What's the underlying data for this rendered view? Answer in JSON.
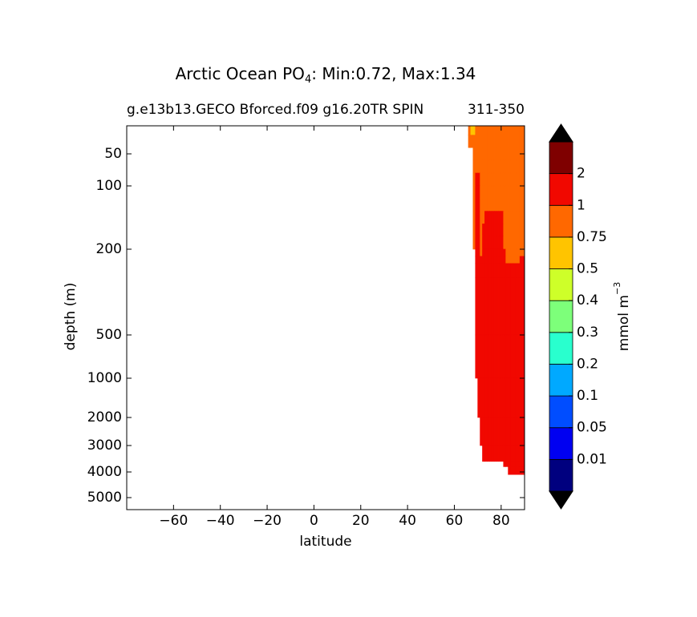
{
  "chart_data": {
    "type": "contourf",
    "title": [
      "Arctic Ocean PO",
      "4",
      ": Min:0.72, Max:1.34"
    ],
    "subtitle": "g.e13b13.GECO Bforced.f09 g16.20TR SPIN",
    "subtitle_right": "311-350",
    "x_label": "latitude",
    "y_label": "depth (m)",
    "xlim": [
      -80,
      90
    ],
    "xticks": [
      {
        "value": -60,
        "label": "−60"
      },
      {
        "value": -40,
        "label": "−40"
      },
      {
        "value": -20,
        "label": "−20"
      },
      0,
      20,
      40,
      60,
      80
    ],
    "ylim": [
      5500,
      5
    ],
    "yticks": [
      50,
      100,
      200,
      500,
      1000,
      2000,
      3000,
      4000,
      5000
    ],
    "lat_edges": [
      66,
      67,
      68,
      69,
      70,
      71,
      72,
      73,
      74,
      75,
      76,
      77,
      78,
      79,
      80,
      81,
      82,
      83,
      84,
      85,
      86,
      87,
      88,
      89,
      90
    ],
    "depth_edges": [
      5,
      20,
      40,
      60,
      80,
      100,
      120,
      140,
      160,
      180,
      200,
      225,
      250,
      300,
      500,
      1000,
      2000,
      3000,
      3600,
      3800,
      4100
    ],
    "z": [
      [
        0.85,
        0.7,
        0.7,
        0.85,
        0.85,
        0.85,
        0.85,
        0.85,
        0.85,
        0.85,
        0.85,
        0.85,
        0.85,
        0.85,
        0.85,
        0.85,
        0.85,
        0.85,
        0.85,
        0.85,
        0.85,
        0.85,
        0.85,
        0.85
      ],
      [
        0.85,
        0.85,
        0.85,
        0.85,
        0.85,
        0.85,
        0.85,
        0.85,
        0.85,
        0.85,
        0.85,
        0.85,
        0.85,
        0.85,
        0.85,
        0.85,
        0.85,
        0.85,
        0.85,
        0.85,
        0.85,
        0.85,
        0.85,
        0.85
      ],
      [
        null,
        null,
        0.85,
        0.85,
        0.85,
        0.85,
        0.85,
        0.85,
        0.85,
        0.85,
        0.85,
        0.85,
        0.85,
        0.85,
        0.85,
        0.85,
        0.85,
        0.85,
        0.85,
        0.85,
        0.85,
        0.85,
        0.85,
        0.85
      ],
      [
        null,
        null,
        0.85,
        0.85,
        0.85,
        0.85,
        0.85,
        0.85,
        0.85,
        0.85,
        0.85,
        0.85,
        0.85,
        0.85,
        0.85,
        0.85,
        0.85,
        0.85,
        0.85,
        0.85,
        0.85,
        0.85,
        0.85,
        0.85
      ],
      [
        null,
        null,
        0.85,
        1.2,
        1.2,
        0.85,
        0.85,
        0.85,
        0.85,
        0.85,
        0.85,
        0.85,
        0.85,
        0.85,
        0.85,
        0.85,
        0.85,
        0.85,
        0.85,
        0.85,
        0.85,
        0.85,
        0.85,
        0.85
      ],
      [
        null,
        null,
        0.85,
        1.2,
        1.2,
        0.85,
        0.85,
        0.85,
        0.85,
        0.85,
        0.85,
        0.85,
        0.85,
        0.85,
        0.85,
        0.85,
        0.85,
        0.85,
        0.85,
        0.85,
        0.85,
        0.85,
        0.85,
        0.85
      ],
      [
        null,
        null,
        0.85,
        1.2,
        1.2,
        0.85,
        0.85,
        0.85,
        0.85,
        0.85,
        0.85,
        0.85,
        0.85,
        0.85,
        0.85,
        0.85,
        0.85,
        0.85,
        0.85,
        0.85,
        0.85,
        0.85,
        0.85,
        0.85
      ],
      [
        null,
        null,
        0.85,
        1.2,
        1.2,
        0.85,
        0.85,
        1.2,
        1.2,
        1.2,
        1.2,
        1.2,
        1.2,
        1.2,
        1.2,
        0.85,
        0.85,
        0.85,
        0.85,
        0.85,
        0.85,
        0.85,
        0.85,
        0.85
      ],
      [
        null,
        null,
        0.85,
        1.2,
        1.2,
        0.85,
        1.2,
        1.2,
        1.2,
        1.2,
        1.2,
        1.2,
        1.2,
        1.2,
        1.2,
        0.85,
        0.85,
        0.85,
        0.85,
        0.85,
        0.85,
        0.85,
        0.85,
        0.85
      ],
      [
        null,
        null,
        0.85,
        1.2,
        1.2,
        0.85,
        1.2,
        1.2,
        1.2,
        1.2,
        1.2,
        1.2,
        1.2,
        1.2,
        1.2,
        0.85,
        0.85,
        0.85,
        0.85,
        0.85,
        0.85,
        0.85,
        0.85,
        0.85
      ],
      [
        null,
        null,
        null,
        1.2,
        1.2,
        0.85,
        1.2,
        1.2,
        1.2,
        1.2,
        1.2,
        1.2,
        1.2,
        1.2,
        1.2,
        1.2,
        0.85,
        0.85,
        0.85,
        0.85,
        0.85,
        0.85,
        0.85,
        0.85
      ],
      [
        null,
        null,
        null,
        1.2,
        1.2,
        1.2,
        1.2,
        1.2,
        1.2,
        1.2,
        1.2,
        1.2,
        1.2,
        1.2,
        1.2,
        1.2,
        0.85,
        0.85,
        0.85,
        0.85,
        0.85,
        0.85,
        1.2,
        1.2
      ],
      [
        null,
        null,
        null,
        1.2,
        1.2,
        1.2,
        1.2,
        1.2,
        1.2,
        1.2,
        1.2,
        1.2,
        1.2,
        1.2,
        1.2,
        1.2,
        1.2,
        1.2,
        1.2,
        1.2,
        1.2,
        1.2,
        1.2,
        1.2
      ],
      [
        null,
        null,
        null,
        1.2,
        1.2,
        1.2,
        1.2,
        1.2,
        1.2,
        1.2,
        1.2,
        1.2,
        1.2,
        1.2,
        1.2,
        1.2,
        1.2,
        1.2,
        1.2,
        1.2,
        1.2,
        1.2,
        1.2,
        1.2
      ],
      [
        null,
        null,
        null,
        1.2,
        1.2,
        1.2,
        1.2,
        1.2,
        1.2,
        1.2,
        1.2,
        1.2,
        1.2,
        1.2,
        1.2,
        1.2,
        1.2,
        1.2,
        1.2,
        1.2,
        1.2,
        1.2,
        1.2,
        1.2
      ],
      [
        null,
        null,
        null,
        null,
        1.2,
        1.2,
        1.2,
        1.2,
        1.2,
        1.2,
        1.2,
        1.2,
        1.2,
        1.2,
        1.2,
        1.2,
        1.2,
        1.2,
        1.2,
        1.2,
        1.2,
        1.2,
        1.2,
        1.2
      ],
      [
        null,
        null,
        null,
        null,
        null,
        1.2,
        1.2,
        1.2,
        1.2,
        1.2,
        1.2,
        1.2,
        1.2,
        1.2,
        1.2,
        1.2,
        1.2,
        1.2,
        1.2,
        1.2,
        1.2,
        1.2,
        1.2,
        1.2
      ],
      [
        null,
        null,
        null,
        null,
        null,
        null,
        1.2,
        1.2,
        1.2,
        1.2,
        1.2,
        1.2,
        1.2,
        1.2,
        1.2,
        1.2,
        1.2,
        1.2,
        1.2,
        1.2,
        1.2,
        1.2,
        1.2,
        1.2
      ],
      [
        null,
        null,
        null,
        null,
        null,
        null,
        null,
        null,
        null,
        null,
        null,
        null,
        null,
        null,
        null,
        1.2,
        1.2,
        1.2,
        1.2,
        1.2,
        1.2,
        1.2,
        1.2,
        1.2
      ],
      [
        null,
        null,
        null,
        null,
        null,
        null,
        null,
        null,
        null,
        null,
        null,
        null,
        null,
        null,
        null,
        null,
        null,
        1.2,
        1.2,
        1.2,
        1.2,
        1.2,
        1.2,
        1.2
      ]
    ],
    "colorbar": {
      "levels": [
        0.01,
        0.05,
        0.1,
        0.2,
        0.3,
        0.4,
        0.5,
        0.75,
        1,
        2
      ],
      "colors": [
        "#00007f",
        "#0000f1",
        "#004dff",
        "#00a9ff",
        "#29ffce",
        "#7dff7a",
        "#ceff29",
        "#ffc400",
        "#ff6800",
        "#f10800",
        "#7f0000"
      ],
      "under_color": "#000000",
      "over_color": "#000000",
      "label": [
        "mmol m",
        "−3"
      ]
    }
  }
}
